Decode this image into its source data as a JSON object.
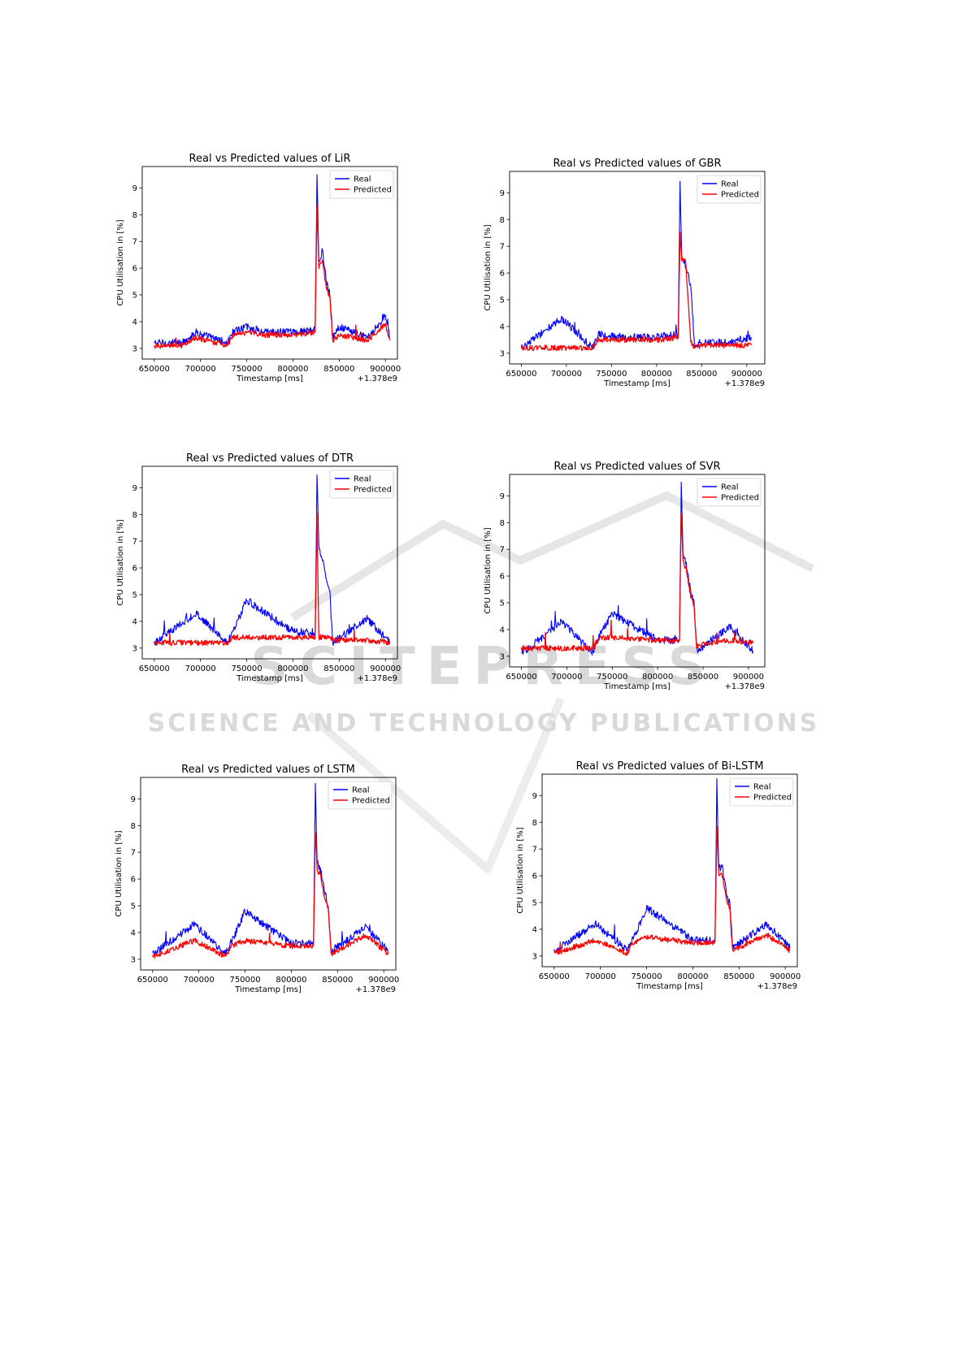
{
  "watermark": {
    "line1": "SCITEPRESS",
    "line2": "SCIENCE AND TECHNOLOGY PUBLICATIONS"
  },
  "chart_data": [
    {
      "type": "line",
      "title": "Real vs Predicted values of LiR",
      "xlabel": "Timestamp [ms]",
      "ylabel": "CPU Utilisation in [%]",
      "x_offset_label": "+1.378e9",
      "xlim": [
        637000,
        913000
      ],
      "ylim": [
        2.6,
        9.8
      ],
      "xticks": [
        650000,
        700000,
        750000,
        800000,
        850000,
        900000
      ],
      "yticks": [
        3,
        4,
        5,
        6,
        7,
        8,
        9
      ],
      "legend": "top-right",
      "grid": false,
      "series": [
        {
          "name": "Real",
          "color": "#0000ff",
          "x": [
            650000,
            680000,
            695000,
            729000,
            735000,
            750000,
            770000,
            800000,
            824000,
            826000,
            828000,
            832000,
            836000,
            840000,
            843000,
            850000,
            880000,
            900000,
            905000
          ],
          "y": [
            3.2,
            3.2,
            3.6,
            3.2,
            3.6,
            3.8,
            3.6,
            3.6,
            3.7,
            9.5,
            6.2,
            6.7,
            5.5,
            5.0,
            3.4,
            3.8,
            3.4,
            4.2,
            3.4
          ]
        },
        {
          "name": "Predicted",
          "color": "#ff0000",
          "x": [
            650000,
            680000,
            695000,
            729000,
            735000,
            750000,
            770000,
            800000,
            824000,
            826000,
            828000,
            832000,
            836000,
            840000,
            843000,
            850000,
            880000,
            900000,
            905000
          ],
          "y": [
            3.1,
            3.1,
            3.4,
            3.1,
            3.5,
            3.6,
            3.5,
            3.5,
            3.6,
            8.4,
            6.0,
            6.3,
            5.3,
            4.9,
            3.3,
            3.5,
            3.3,
            3.9,
            3.3
          ]
        }
      ]
    },
    {
      "type": "line",
      "title": "Real vs Predicted values of GBR",
      "xlabel": "Timestamp [ms]",
      "ylabel": "CPU Utilisation in [%]",
      "x_offset_label": "+1.378e9",
      "xlim": [
        637000,
        920000
      ],
      "ylim": [
        2.6,
        9.8
      ],
      "xticks": [
        650000,
        700000,
        750000,
        800000,
        850000,
        900000
      ],
      "yticks": [
        3,
        4,
        5,
        6,
        7,
        8,
        9
      ],
      "legend": "top-right",
      "grid": false,
      "series": [
        {
          "name": "Real",
          "color": "#0000ff",
          "x": [
            650000,
            695000,
            729000,
            735000,
            760000,
            800000,
            824000,
            826000,
            828000,
            832000,
            838000,
            842000,
            850000,
            880000,
            905000
          ],
          "y": [
            3.2,
            4.3,
            3.2,
            3.7,
            3.6,
            3.6,
            3.7,
            9.5,
            6.5,
            6.3,
            5.5,
            3.3,
            3.4,
            3.4,
            3.6
          ]
        },
        {
          "name": "Predicted",
          "color": "#ff0000",
          "x": [
            650000,
            695000,
            729000,
            735000,
            760000,
            800000,
            824000,
            826000,
            828000,
            832000,
            838000,
            842000,
            850000,
            880000,
            905000
          ],
          "y": [
            3.2,
            3.2,
            3.2,
            3.5,
            3.5,
            3.5,
            3.6,
            7.5,
            6.5,
            6.5,
            3.4,
            3.2,
            3.3,
            3.3,
            3.3
          ]
        }
      ]
    },
    {
      "type": "line",
      "title": "Real vs Predicted values of DTR",
      "xlabel": "Timestamp [ms]",
      "ylabel": "CPU Utilisation in [%]",
      "x_offset_label": "+1.378e9",
      "xlim": [
        637000,
        913000
      ],
      "ylim": [
        2.6,
        9.8
      ],
      "xticks": [
        650000,
        700000,
        750000,
        800000,
        850000,
        900000
      ],
      "yticks": [
        3,
        4,
        5,
        6,
        7,
        8,
        9
      ],
      "legend": "top-right",
      "grid": false,
      "series": [
        {
          "name": "Real",
          "color": "#0000ff",
          "x": [
            650000,
            695000,
            729000,
            735000,
            750000,
            800000,
            824000,
            826000,
            828000,
            832000,
            836000,
            840000,
            843000,
            880000,
            905000
          ],
          "y": [
            3.2,
            4.3,
            3.2,
            3.6,
            4.8,
            3.6,
            3.6,
            9.5,
            6.8,
            6.3,
            5.5,
            5.0,
            3.2,
            4.1,
            3.2
          ]
        },
        {
          "name": "Predicted",
          "color": "#ff0000",
          "x": [
            650000,
            695000,
            729000,
            735000,
            750000,
            800000,
            824000,
            826000,
            828000,
            832000,
            836000,
            840000,
            843000,
            880000,
            905000
          ],
          "y": [
            3.2,
            3.2,
            3.2,
            3.4,
            3.4,
            3.4,
            3.4,
            8.0,
            3.4,
            3.4,
            3.4,
            3.4,
            3.3,
            3.3,
            3.2
          ]
        }
      ]
    },
    {
      "type": "line",
      "title": "Real vs Predicted values of SVR",
      "xlabel": "Timestamp [ms]",
      "ylabel": "CPU Utilisation in [%]",
      "x_offset_label": "+1.378e9",
      "xlim": [
        637000,
        918000
      ],
      "ylim": [
        2.6,
        9.8
      ],
      "xticks": [
        650000,
        700000,
        750000,
        800000,
        850000,
        900000
      ],
      "yticks": [
        3,
        4,
        5,
        6,
        7,
        8,
        9
      ],
      "legend": "top-right",
      "grid": false,
      "series": [
        {
          "name": "Real",
          "color": "#0000ff",
          "x": [
            650000,
            695000,
            729000,
            735000,
            750000,
            800000,
            824000,
            826000,
            828000,
            832000,
            836000,
            840000,
            843000,
            880000,
            905000
          ],
          "y": [
            3.1,
            4.3,
            3.1,
            3.7,
            4.6,
            3.6,
            3.6,
            9.5,
            6.9,
            6.3,
            5.5,
            5.0,
            3.2,
            4.1,
            3.2
          ]
        },
        {
          "name": "Predicted",
          "color": "#ff0000",
          "x": [
            650000,
            695000,
            729000,
            735000,
            750000,
            800000,
            824000,
            826000,
            828000,
            832000,
            836000,
            840000,
            843000,
            880000,
            905000
          ],
          "y": [
            3.3,
            3.3,
            3.3,
            3.7,
            3.7,
            3.6,
            3.6,
            8.4,
            6.5,
            6.2,
            5.3,
            4.9,
            3.4,
            3.6,
            3.5
          ]
        }
      ]
    },
    {
      "type": "line",
      "title": "Real vs Predicted values of LSTM",
      "xlabel": "Timestamp [ms]",
      "ylabel": "CPU Utilisation in [%]",
      "x_offset_label": "+1.378e9",
      "xlim": [
        637000,
        913000
      ],
      "ylim": [
        2.6,
        9.8
      ],
      "xticks": [
        650000,
        700000,
        750000,
        800000,
        850000,
        900000
      ],
      "yticks": [
        3,
        4,
        5,
        6,
        7,
        8,
        9
      ],
      "legend": "top-right",
      "grid": false,
      "series": [
        {
          "name": "Real",
          "color": "#0000ff",
          "x": [
            650000,
            695000,
            729000,
            735000,
            750000,
            800000,
            824000,
            826000,
            828000,
            832000,
            836000,
            840000,
            843000,
            880000,
            905000
          ],
          "y": [
            3.2,
            4.3,
            3.2,
            3.6,
            4.8,
            3.6,
            3.6,
            9.5,
            6.6,
            6.3,
            5.5,
            5.0,
            3.3,
            4.2,
            3.3
          ]
        },
        {
          "name": "Predicted",
          "color": "#ff0000",
          "x": [
            650000,
            695000,
            729000,
            735000,
            750000,
            800000,
            824000,
            826000,
            828000,
            832000,
            836000,
            840000,
            843000,
            880000,
            905000
          ],
          "y": [
            3.1,
            3.7,
            3.1,
            3.5,
            3.7,
            3.5,
            3.5,
            7.8,
            6.3,
            6.1,
            5.3,
            4.9,
            3.2,
            3.9,
            3.2
          ]
        }
      ]
    },
    {
      "type": "line",
      "title": "Real vs Predicted values of Bi-LSTM",
      "xlabel": "Timestamp [ms]",
      "ylabel": "CPU Utilisation in [%]",
      "x_offset_label": "+1.378e9",
      "xlim": [
        637000,
        913000
      ],
      "ylim": [
        2.6,
        9.8
      ],
      "xticks": [
        650000,
        700000,
        750000,
        800000,
        850000,
        900000
      ],
      "yticks": [
        3,
        4,
        5,
        6,
        7,
        8,
        9
      ],
      "legend": "top-right",
      "grid": false,
      "series": [
        {
          "name": "Real",
          "color": "#0000ff",
          "x": [
            650000,
            695000,
            729000,
            735000,
            750000,
            800000,
            824000,
            826000,
            828000,
            832000,
            836000,
            840000,
            843000,
            880000,
            905000
          ],
          "y": [
            3.2,
            4.2,
            3.2,
            3.6,
            4.8,
            3.6,
            3.6,
            9.5,
            6.3,
            6.3,
            5.4,
            5.0,
            3.3,
            4.2,
            3.3
          ]
        },
        {
          "name": "Predicted",
          "color": "#ff0000",
          "x": [
            650000,
            695000,
            729000,
            735000,
            750000,
            800000,
            824000,
            826000,
            828000,
            832000,
            836000,
            840000,
            843000,
            880000,
            905000
          ],
          "y": [
            3.1,
            3.6,
            3.1,
            3.5,
            3.7,
            3.5,
            3.5,
            7.8,
            6.1,
            6.0,
            5.2,
            4.8,
            3.2,
            3.8,
            3.2
          ]
        }
      ]
    }
  ]
}
